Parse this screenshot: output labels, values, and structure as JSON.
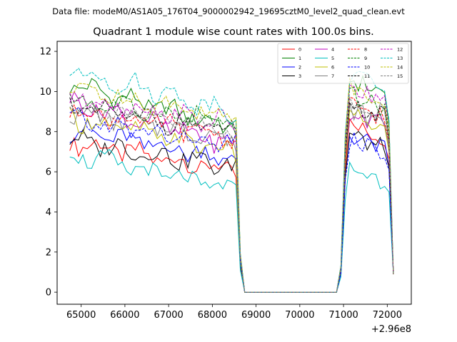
{
  "chart_data": {
    "type": "line",
    "suptitle": "Data file: modeM0/AS1A05_176T04_9000002942_19695cztM0_level2_quad_clean.evt",
    "title": "Quadrant 1 module wise count rates with 100.0s bins.",
    "xlabel": "",
    "ylabel": "",
    "x_offset_label": "+2.96e8",
    "xlim": [
      64450,
      72550
    ],
    "ylim": [
      -0.6,
      12.5
    ],
    "x_ticks": [
      65000,
      66000,
      67000,
      68000,
      69000,
      70000,
      71000,
      72000
    ],
    "x_tick_labels": [
      "65000",
      "66000",
      "67000",
      "68000",
      "69000",
      "70000",
      "71000",
      "72000"
    ],
    "y_ticks": [
      0,
      2,
      4,
      6,
      8,
      10,
      12
    ],
    "y_tick_labels": [
      "0",
      "2",
      "4",
      "6",
      "8",
      "10",
      "12"
    ],
    "legend_position": "upper right",
    "segments": [
      {
        "x_start": 64740,
        "x_end": 68540,
        "step": 100,
        "shape": "decay"
      },
      {
        "x": [
          68640,
          68740,
          70840
        ],
        "shape": "drop"
      },
      {
        "x_start": 70940,
        "x_end": 72140,
        "step": 100,
        "shape": "recover"
      }
    ],
    "series": [
      {
        "name": "0",
        "color": "#ff0000",
        "dash": "solid",
        "start": 7.5,
        "end": 6.0,
        "peak": 8.5
      },
      {
        "name": "1",
        "color": "#008000",
        "dash": "solid",
        "start": 10.4,
        "end": 8.2,
        "peak": 10.8
      },
      {
        "name": "2",
        "color": "#0000ff",
        "dash": "solid",
        "start": 8.1,
        "end": 6.6,
        "peak": 8.0
      },
      {
        "name": "3",
        "color": "#000000",
        "dash": "solid",
        "start": 7.6,
        "end": 6.2,
        "peak": 8.0
      },
      {
        "name": "4",
        "color": "#bf00bf",
        "dash": "solid",
        "start": 9.5,
        "end": 7.3,
        "peak": 9.2
      },
      {
        "name": "5",
        "color": "#00bfbf",
        "dash": "solid",
        "start": 6.9,
        "end": 5.0,
        "peak": 6.4
      },
      {
        "name": "6",
        "color": "#bfbf00",
        "dash": "solid",
        "start": 8.7,
        "end": 7.0,
        "peak": 9.0
      },
      {
        "name": "7",
        "color": "#808080",
        "dash": "solid",
        "start": 9.0,
        "end": 7.6,
        "peak": 9.3
      },
      {
        "name": "8",
        "color": "#ff0000",
        "dash": "dashed",
        "start": 9.1,
        "end": 7.7,
        "peak": 9.6
      },
      {
        "name": "9",
        "color": "#008000",
        "dash": "dashed",
        "start": 9.6,
        "end": 8.4,
        "peak": 10.0
      },
      {
        "name": "10",
        "color": "#0000ff",
        "dash": "dashed",
        "start": 8.6,
        "end": 7.2,
        "peak": 7.8
      },
      {
        "name": "11",
        "color": "#000000",
        "dash": "dashed",
        "start": 9.2,
        "end": 8.0,
        "peak": 9.6
      },
      {
        "name": "12",
        "color": "#bf00bf",
        "dash": "dashed",
        "start": 9.8,
        "end": 8.3,
        "peak": 10.3
      },
      {
        "name": "13",
        "color": "#00bfbf",
        "dash": "dashed",
        "start": 11.1,
        "end": 9.0,
        "peak": 11.0
      },
      {
        "name": "14",
        "color": "#bfbf00",
        "dash": "dashed",
        "start": 10.2,
        "end": 8.7,
        "peak": 10.5
      },
      {
        "name": "15",
        "color": "#808080",
        "dash": "dashed",
        "start": 9.3,
        "end": 7.9,
        "peak": 9.8
      }
    ]
  }
}
